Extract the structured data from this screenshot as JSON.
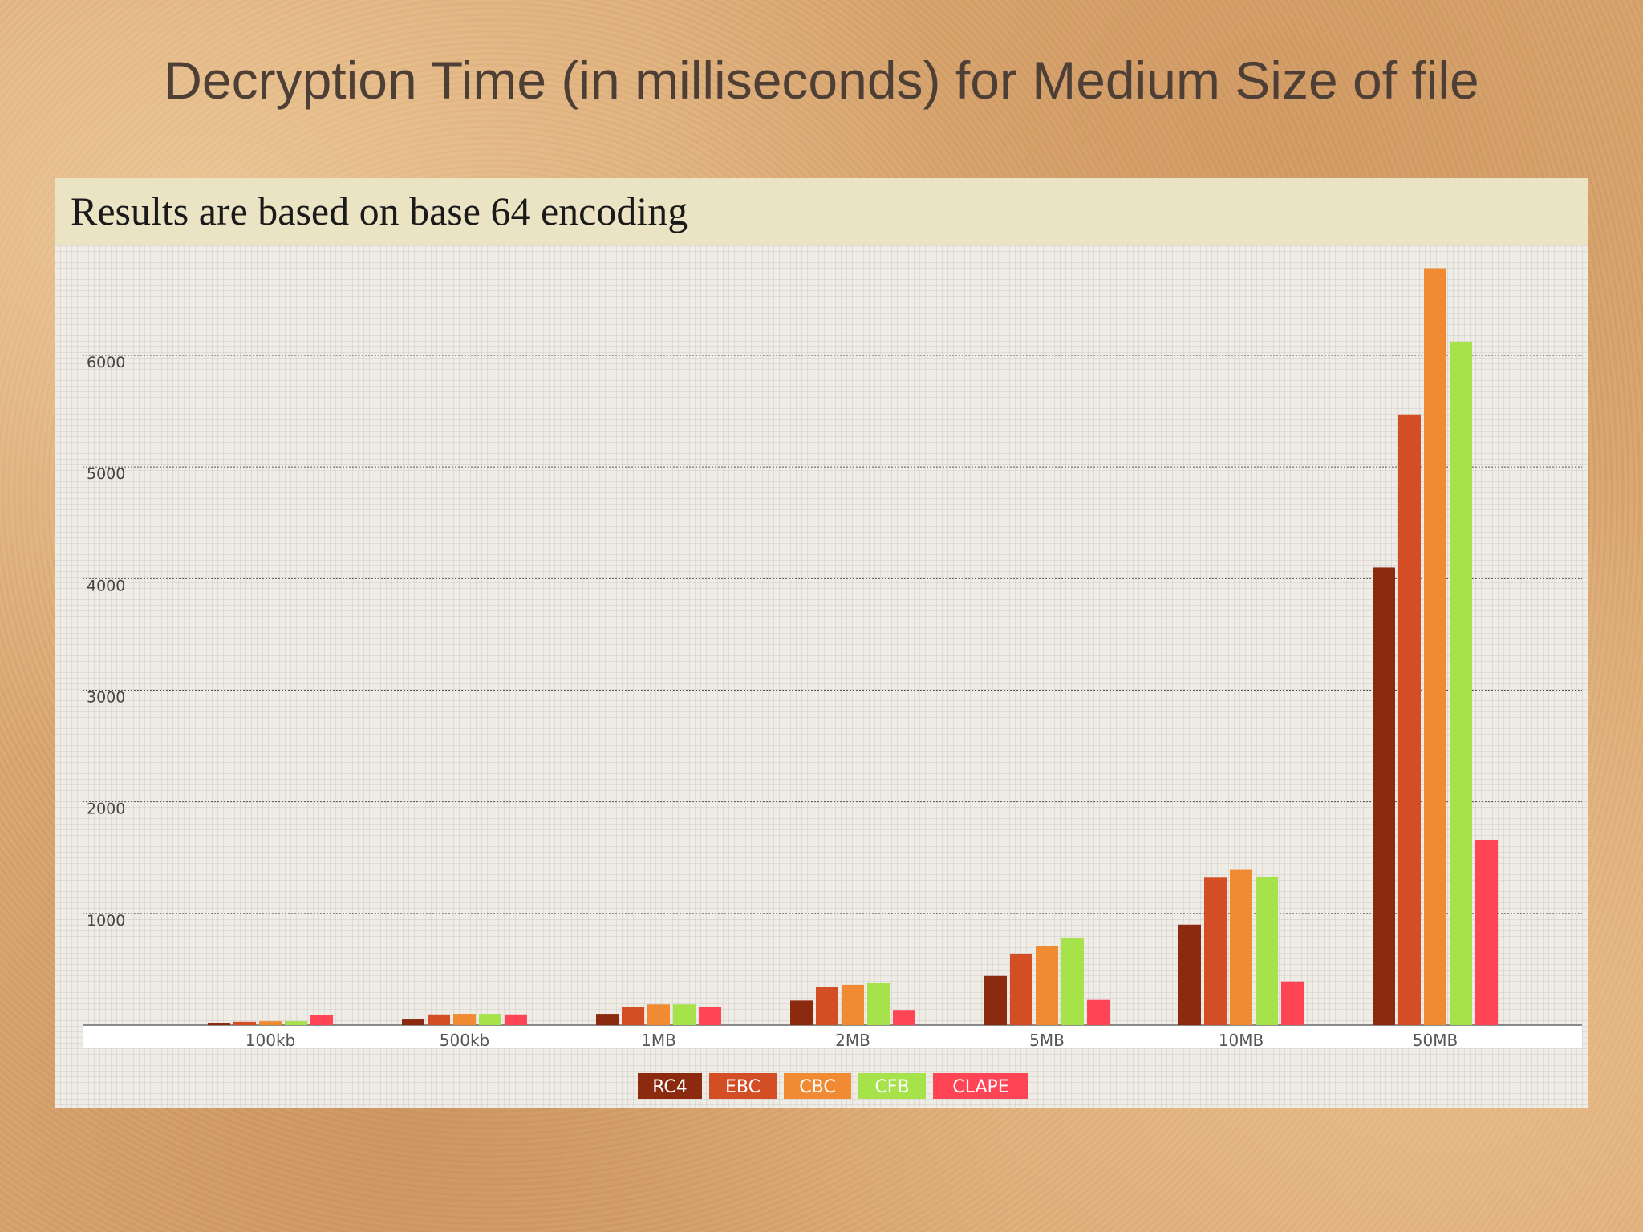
{
  "title": "Decryption Time (in milliseconds) for Medium Size of file",
  "subtitle": "Results are based on base 64 encoding",
  "chart_data": {
    "type": "bar",
    "categories": [
      "100kb",
      "500kb",
      "1MB",
      "2MB",
      "5MB",
      "10MB",
      "50MB"
    ],
    "series": [
      {
        "name": "RC4",
        "color": "#8b2a0f",
        "values": [
          15,
          50,
          100,
          220,
          440,
          900,
          4100
        ]
      },
      {
        "name": "EBC",
        "color": "#d44e25",
        "values": [
          30,
          95,
          165,
          345,
          640,
          1320,
          5470
        ]
      },
      {
        "name": "CBC",
        "color": "#f08a33",
        "values": [
          35,
          100,
          185,
          360,
          710,
          1390,
          6780
        ]
      },
      {
        "name": "CFB",
        "color": "#a6e24a",
        "values": [
          35,
          100,
          185,
          380,
          780,
          1330,
          6120
        ]
      },
      {
        "name": "CLAPE",
        "color": "#ff4456",
        "values": [
          90,
          95,
          165,
          135,
          225,
          390,
          1660
        ]
      }
    ],
    "yticks": [
      0,
      1000,
      2000,
      3000,
      4000,
      5000,
      6000
    ],
    "ylim": [
      0,
      7000
    ],
    "grid": true,
    "legend": "bottom-center",
    "xlabel": "",
    "ylabel": ""
  }
}
